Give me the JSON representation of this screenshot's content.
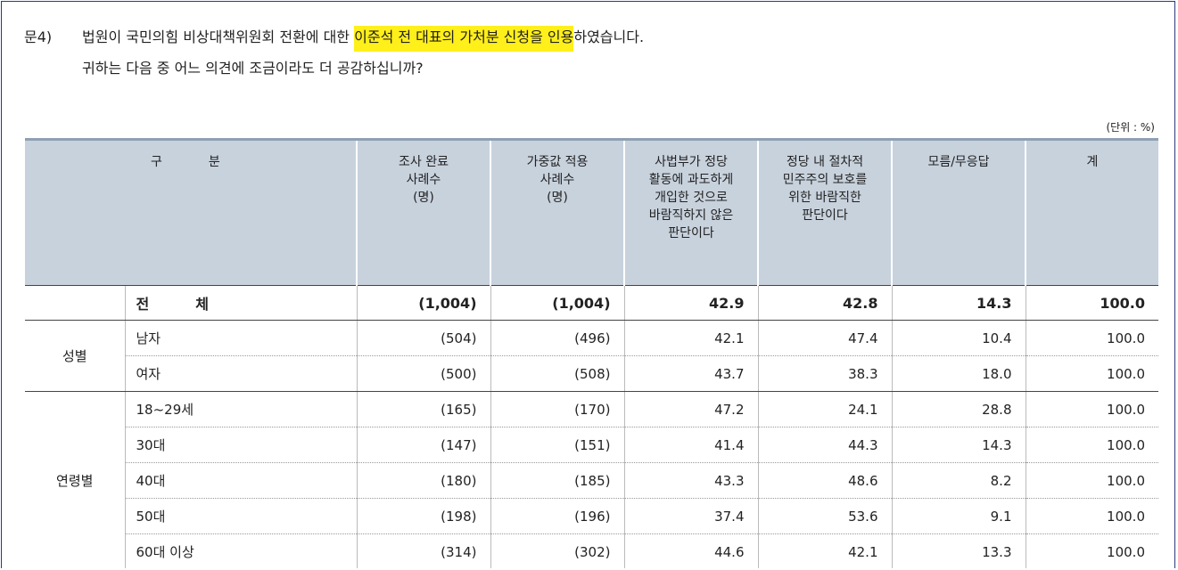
{
  "question": {
    "label": "문4)",
    "line1_pre": "법원이 국민의힘 비상대책위원회 전환에 대한 ",
    "line1_highlight": "이준석 전 대표의 가처분 신청을 인용",
    "line1_post": "하였습니다.",
    "line2": "귀하는 다음 중 어느 의견에 조금이라도 더 공감하십니까?"
  },
  "unit": "(단위 : %)",
  "colors": {
    "highlight": "#ffef1a",
    "header_bg": "#c8d2dd",
    "frame": "#2a3a7a"
  },
  "header": {
    "gubun_1": "구",
    "gubun_2": "분",
    "col1": [
      "조사 완료",
      "사례수",
      "(명)"
    ],
    "col2": [
      "가중값 적용",
      "사례수",
      "(명)"
    ],
    "col3": [
      "사법부가 정당",
      "활동에 과도하게",
      "개입한 것으로",
      "바람직하지 않은",
      "판단이다"
    ],
    "col4": [
      "정당 내 절차적",
      "민주주의 보호를",
      "위한 바람직한",
      "판단이다"
    ],
    "col5": [
      "모름/무응답"
    ],
    "col6": [
      "계"
    ]
  },
  "total": {
    "label1": "전",
    "label2": "체",
    "values": [
      "(1,004)",
      "(1,004)",
      "42.9",
      "42.8",
      "14.3",
      "100.0"
    ]
  },
  "groups": [
    {
      "name": "성별",
      "rows": [
        {
          "label": "남자",
          "values": [
            "(504)",
            "(496)",
            "42.1",
            "47.4",
            "10.4",
            "100.0"
          ]
        },
        {
          "label": "여자",
          "values": [
            "(500)",
            "(508)",
            "43.7",
            "38.3",
            "18.0",
            "100.0"
          ]
        }
      ]
    },
    {
      "name": "연령별",
      "rows": [
        {
          "label": "18~29세",
          "values": [
            "(165)",
            "(170)",
            "47.2",
            "24.1",
            "28.8",
            "100.0"
          ]
        },
        {
          "label": "30대",
          "values": [
            "(147)",
            "(151)",
            "41.4",
            "44.3",
            "14.3",
            "100.0"
          ]
        },
        {
          "label": "40대",
          "values": [
            "(180)",
            "(185)",
            "43.3",
            "48.6",
            "8.2",
            "100.0"
          ]
        },
        {
          "label": "50대",
          "values": [
            "(198)",
            "(196)",
            "37.4",
            "53.6",
            "9.1",
            "100.0"
          ]
        },
        {
          "label": "60대 이상",
          "values": [
            "(314)",
            "(302)",
            "44.6",
            "42.1",
            "13.3",
            "100.0"
          ]
        }
      ]
    }
  ]
}
